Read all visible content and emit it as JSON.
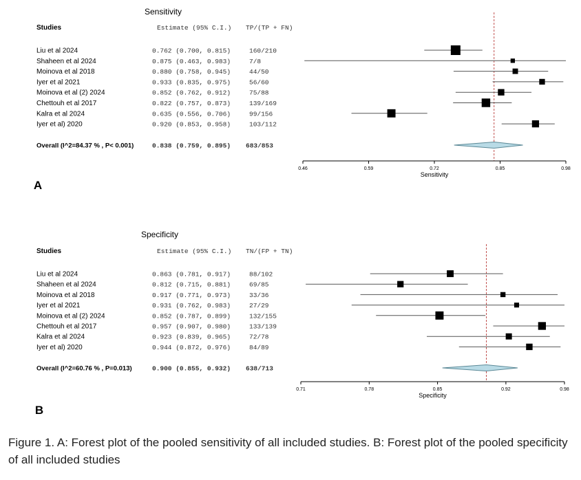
{
  "chart_data": [
    {
      "type": "forest",
      "panel_label": "A",
      "title": "Sensitivity",
      "header": {
        "studies": "Studies",
        "estimate": "Estimate (95% C.I.)",
        "ratio": "TP/(TP + FN)"
      },
      "xlabel": "Sensitivity",
      "xlim": [
        0.46,
        0.98
      ],
      "ticks": [
        "0.46",
        "0.59",
        "0.72",
        "0.85",
        "0.98"
      ],
      "tick_values": [
        0.46,
        0.59,
        0.72,
        0.85,
        0.98
      ],
      "reference_line": 0.838,
      "studies": [
        {
          "name": "Liu et al 2024",
          "estimate": 0.762,
          "lower": 0.7,
          "upper": 0.815,
          "ci_text": "0.762 (0.700, 0.815)",
          "ratio": "160/210"
        },
        {
          "name": "Shaheen et al 2024",
          "estimate": 0.875,
          "lower": 0.463,
          "upper": 0.983,
          "ci_text": "0.875 (0.463, 0.983)",
          "ratio": "7/8"
        },
        {
          "name": "Moinova et al 2018",
          "estimate": 0.88,
          "lower": 0.758,
          "upper": 0.945,
          "ci_text": "0.880 (0.758, 0.945)",
          "ratio": "44/50"
        },
        {
          "name": "Iyer et al 2021",
          "estimate": 0.933,
          "lower": 0.835,
          "upper": 0.975,
          "ci_text": "0.933 (0.835, 0.975)",
          "ratio": "56/60"
        },
        {
          "name": "Moinova et al (2) 2024",
          "estimate": 0.852,
          "lower": 0.762,
          "upper": 0.912,
          "ci_text": "0.852 (0.762, 0.912)",
          "ratio": "75/88"
        },
        {
          "name": "Chettouh et al 2017",
          "estimate": 0.822,
          "lower": 0.757,
          "upper": 0.873,
          "ci_text": "0.822 (0.757, 0.873)",
          "ratio": "139/169"
        },
        {
          "name": "Kalra et al 2024",
          "estimate": 0.635,
          "lower": 0.556,
          "upper": 0.706,
          "ci_text": "0.635 (0.556, 0.706)",
          "ratio": "99/156"
        },
        {
          "name": "Iyer et al) 2020",
          "estimate": 0.92,
          "lower": 0.853,
          "upper": 0.958,
          "ci_text": "0.920 (0.853, 0.958)",
          "ratio": "103/112"
        }
      ],
      "overall": {
        "label": "Overall (I^2=84.37 % , P< 0.001)",
        "estimate": 0.838,
        "lower": 0.759,
        "upper": 0.895,
        "ci_text": "0.838 (0.759, 0.895)",
        "ratio": "683/853"
      }
    },
    {
      "type": "forest",
      "panel_label": "B",
      "title": "Specificity",
      "header": {
        "studies": "Studies",
        "estimate": "Estimate (95% C.I.)",
        "ratio": "TN/(FP + TN)"
      },
      "xlabel": "Specificity",
      "xlim": [
        0.71,
        0.98
      ],
      "ticks": [
        "0.71",
        "0.78",
        "0.85",
        "0.92",
        "0.98"
      ],
      "tick_values": [
        0.71,
        0.78,
        0.85,
        0.92,
        0.98
      ],
      "reference_line": 0.9,
      "studies": [
        {
          "name": "Liu et al 2024",
          "estimate": 0.863,
          "lower": 0.781,
          "upper": 0.917,
          "ci_text": "0.863 (0.781, 0.917)",
          "ratio": "88/102"
        },
        {
          "name": "Shaheen et al 2024",
          "estimate": 0.812,
          "lower": 0.715,
          "upper": 0.881,
          "ci_text": "0.812 (0.715, 0.881)",
          "ratio": "69/85"
        },
        {
          "name": "Moinova et al 2018",
          "estimate": 0.917,
          "lower": 0.771,
          "upper": 0.973,
          "ci_text": "0.917 (0.771, 0.973)",
          "ratio": "33/36"
        },
        {
          "name": "Iyer et al 2021",
          "estimate": 0.931,
          "lower": 0.762,
          "upper": 0.983,
          "ci_text": "0.931 (0.762, 0.983)",
          "ratio": "27/29"
        },
        {
          "name": "Moinova et al (2) 2024",
          "estimate": 0.852,
          "lower": 0.787,
          "upper": 0.899,
          "ci_text": "0.852 (0.787, 0.899)",
          "ratio": "132/155"
        },
        {
          "name": "Chettouh et al 2017",
          "estimate": 0.957,
          "lower": 0.907,
          "upper": 0.98,
          "ci_text": "0.957 (0.907, 0.980)",
          "ratio": "133/139"
        },
        {
          "name": "Kalra et al 2024",
          "estimate": 0.923,
          "lower": 0.839,
          "upper": 0.965,
          "ci_text": "0.923 (0.839, 0.965)",
          "ratio": "72/78"
        },
        {
          "name": "Iyer et al) 2020",
          "estimate": 0.944,
          "lower": 0.872,
          "upper": 0.976,
          "ci_text": "0.944 (0.872, 0.976)",
          "ratio": "84/89"
        }
      ],
      "overall": {
        "label": "Overall (I^2=60.76 % , P=0.013)",
        "estimate": 0.9,
        "lower": 0.855,
        "upper": 0.932,
        "ci_text": "0.900 (0.855, 0.932)",
        "ratio": "638/713"
      }
    }
  ],
  "caption": "Figure 1. A: Forest plot of the pooled sensitivity of all included studies. B: Forest plot of the pooled specificity of all included studies",
  "colors": {
    "diamond_fill": "#b9dbe6",
    "diamond_stroke": "#5a8896",
    "reference_line": "#c0504d",
    "box": "#000000"
  }
}
